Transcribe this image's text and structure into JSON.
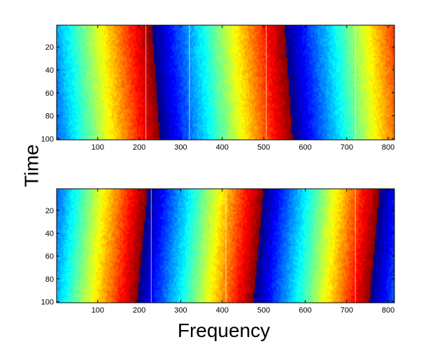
{
  "figure": {
    "xlabel": "Frequency",
    "ylabel": "Time"
  },
  "chart_data": [
    {
      "type": "heatmap",
      "colormap": "jet",
      "xlim": [
        1,
        815
      ],
      "ylim": [
        1,
        101
      ],
      "y_reversed": true,
      "x_ticks": [
        100,
        200,
        300,
        400,
        500,
        600,
        700,
        800
      ],
      "y_ticks": [
        20,
        40,
        60,
        80,
        100
      ],
      "phase_wrap_frequency_period": 320,
      "top_row_wrap_frequency": 230,
      "bottom_row_wrap_frequency": 250,
      "artifact_columns": [
        215,
        320,
        505,
        720
      ]
    },
    {
      "type": "heatmap",
      "colormap": "jet",
      "xlim": [
        1,
        815
      ],
      "ylim": [
        1,
        101
      ],
      "y_reversed": true,
      "x_ticks": [
        100,
        200,
        300,
        400,
        500,
        600,
        700,
        800
      ],
      "y_ticks": [
        20,
        40,
        60,
        80,
        100
      ],
      "phase_wrap_frequency_period": 280,
      "top_row_wrap_frequency": 220,
      "bottom_row_wrap_frequency": 195,
      "artifact_columns": [
        228,
        408,
        720
      ]
    }
  ]
}
